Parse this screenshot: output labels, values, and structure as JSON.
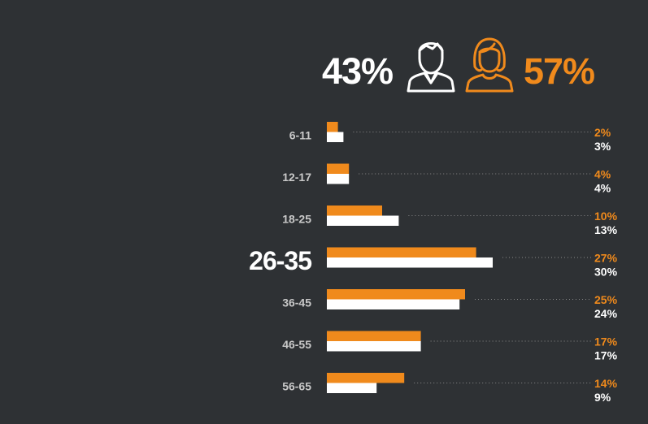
{
  "header": {
    "male_percent": "43%",
    "female_percent": "57%",
    "male_icon": "man-icon",
    "female_icon": "woman-icon"
  },
  "colors": {
    "background": "#2e3134",
    "female": "#f08a1c",
    "male": "#ffffff",
    "label": "#c9c9c9",
    "leader": "#8a8a8a"
  },
  "chart_data": {
    "type": "bar",
    "orientation": "horizontal",
    "categories": [
      "6-11",
      "12-17",
      "18-25",
      "26-35",
      "36-45",
      "46-55",
      "56-65"
    ],
    "highlighted_category": "26-35",
    "series": [
      {
        "values": [
          2,
          4,
          10,
          27,
          25,
          17,
          14
        ],
        "labels": [
          "2%",
          "4%",
          "10%",
          "27%",
          "25%",
          "17%",
          "14%"
        ],
        "color": "#f08a1c"
      },
      {
        "values": [
          3,
          4,
          13,
          30,
          24,
          17,
          9
        ],
        "labels": [
          "3%",
          "4%",
          "13%",
          "30%",
          "24%",
          "17%",
          "9%"
        ],
        "color": "#ffffff"
      }
    ],
    "xlim": [
      0,
      30
    ],
    "grid": false,
    "legend": "none"
  }
}
